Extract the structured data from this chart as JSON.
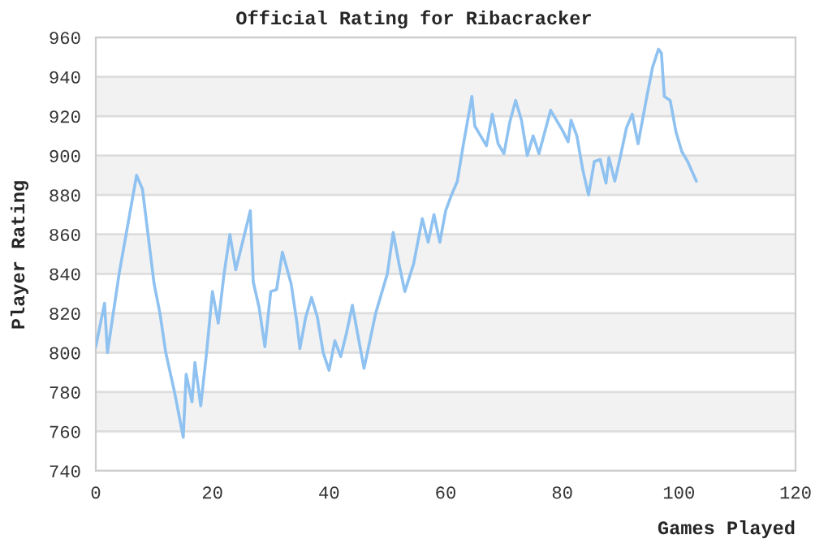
{
  "chart_data": {
    "type": "line",
    "title": "Official Rating for Ribacracker",
    "xlabel": "Games Played",
    "ylabel": "Player Rating",
    "x": [
      0,
      1.5,
      2,
      4,
      7,
      8,
      10,
      11,
      12,
      13.5,
      15,
      15.5,
      16.5,
      17,
      18,
      19,
      20,
      21,
      22,
      23,
      24,
      25.5,
      26.5,
      27,
      28,
      29,
      30,
      31,
      32,
      33.5,
      34.5,
      35,
      36,
      37,
      38,
      39,
      40,
      41,
      42,
      43,
      44,
      45,
      46,
      48,
      50,
      51,
      52,
      53,
      54.5,
      56,
      57,
      58,
      59,
      60,
      61,
      62,
      63,
      64.5,
      65,
      66,
      67,
      68,
      69,
      70,
      71,
      72,
      73,
      74,
      75,
      76,
      77,
      78,
      80,
      81,
      81.5,
      82.5,
      83.5,
      84.5,
      85.5,
      86.5,
      87.5,
      88,
      89,
      90,
      91,
      92,
      93,
      94.5,
      95.5,
      96.5,
      97,
      97.5,
      98.5,
      99.5,
      100.5,
      101.5,
      103
    ],
    "series": [
      {
        "color": "#8fc2f0",
        "values": [
          803,
          825,
          800,
          840,
          890,
          883,
          835,
          820,
          800,
          780,
          757,
          789,
          775,
          795,
          773,
          800,
          831,
          815,
          840,
          860,
          842,
          860,
          872,
          836,
          823,
          803,
          831,
          832,
          851,
          835,
          815,
          802,
          818,
          828,
          818,
          800,
          791,
          806,
          798,
          810,
          824,
          808,
          792,
          820,
          840,
          861,
          845,
          831,
          845,
          868,
          856,
          870,
          856,
          872,
          880,
          887,
          905,
          930,
          915,
          910,
          905,
          921,
          906,
          901,
          917,
          928,
          918,
          900,
          910,
          901,
          912,
          923,
          913,
          907,
          918,
          910,
          893,
          880,
          897,
          898,
          886,
          899,
          887,
          900,
          914,
          921,
          906,
          930,
          945,
          954,
          952,
          930,
          928,
          912,
          902,
          897,
          887
        ]
      }
    ],
    "xlim": [
      0,
      120
    ],
    "ylim": [
      740,
      960
    ],
    "xticks": [
      0,
      20,
      40,
      60,
      80,
      100,
      120
    ],
    "yticks": [
      740,
      760,
      780,
      800,
      820,
      840,
      860,
      880,
      900,
      920,
      940,
      960
    ],
    "grid": "y",
    "bands": [
      {
        "axis": "y",
        "from": 760,
        "to": 780,
        "color": "#f2f2f2"
      },
      {
        "axis": "y",
        "from": 800,
        "to": 820,
        "color": "#f2f2f2"
      },
      {
        "axis": "y",
        "from": 840,
        "to": 860,
        "color": "#f2f2f2"
      },
      {
        "axis": "y",
        "from": 880,
        "to": 900,
        "color": "#f2f2f2"
      },
      {
        "axis": "y",
        "from": 920,
        "to": 940,
        "color": "#f2f2f2"
      }
    ]
  }
}
